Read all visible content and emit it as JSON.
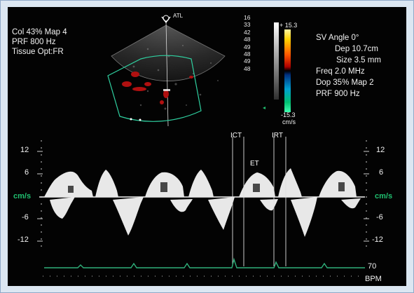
{
  "left_settings": [
    "Col 43%  Map 4",
    "PRF 800   Hz",
    "Tissue Opt:FR"
  ],
  "probe_label": "ATL",
  "right_settings": [
    "SV Angle 0°",
    "Dep 10.7cm",
    "Size 3.5   mm",
    "Freq 2.0  MHz",
    "Dop 35%  Map 2",
    "PRF 900    Hz"
  ],
  "depth_scale": [
    "16",
    "33",
    "42",
    "48",
    "49",
    "48",
    "49",
    "48"
  ],
  "color_bar": {
    "top_value": "+ 15.3",
    "bottom_value": "-15.3",
    "unit": "cm/s"
  },
  "left_axis_ticks": [
    "12",
    "6",
    "cm/s",
    "-6",
    "-12"
  ],
  "right_axis_ticks": [
    "12",
    "6",
    "cm/s",
    "-6",
    "-12"
  ],
  "interval_markers": {
    "ict": "ICT",
    "et": "ET",
    "irt": "IRT"
  },
  "heart_rate": {
    "value": "70",
    "unit": "BPM"
  },
  "colors": {
    "ecg": "#2fb07a",
    "axis_label": "#20c070",
    "background": "#030303",
    "frame": "#dce7f2"
  }
}
